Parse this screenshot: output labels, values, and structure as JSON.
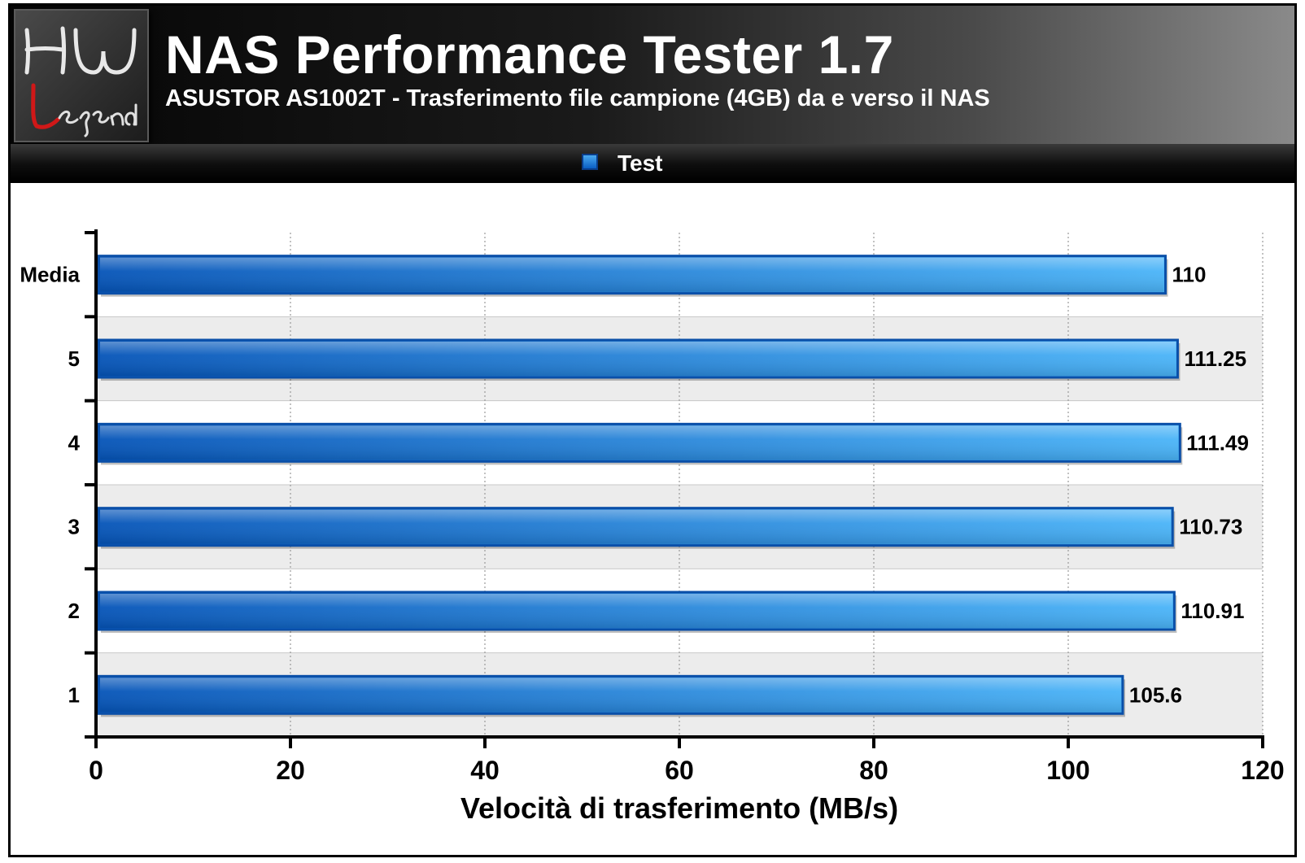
{
  "header": {
    "title": "NAS Performance Tester 1.7",
    "subtitle": "ASUSTOR AS1002T - Trasferimento file campione (4GB) da e verso il NAS",
    "logo_text_top": "HW",
    "logo_text_bottom": "Legend"
  },
  "legend": {
    "label": "Test",
    "color": "#1a7fe0"
  },
  "chart_data": {
    "type": "bar",
    "orientation": "horizontal",
    "title": "NAS Performance Tester 1.7",
    "subtitle": "ASUSTOR AS1002T - Trasferimento file campione (4GB) da e verso il NAS",
    "categories": [
      "Media",
      "5",
      "4",
      "3",
      "2",
      "1"
    ],
    "series": [
      {
        "name": "Test",
        "values": [
          110,
          111.25,
          111.49,
          110.73,
          110.91,
          105.6
        ]
      }
    ],
    "data_labels": [
      "110",
      "111.25",
      "111.49",
      "110.73",
      "110.91",
      "105.6"
    ],
    "xlabel": "Velocità di trasferimento (MB/s)",
    "ylabel": "",
    "xlim": [
      0,
      120
    ],
    "xticks": [
      0,
      20,
      40,
      60,
      80,
      100,
      120
    ],
    "grid": true,
    "legend_position": "top-center",
    "colors": {
      "bar_dark": "#0554b8",
      "bar_light": "#4ab4f8",
      "bar_border": "#0a4fa8",
      "band_alt": "#ececec"
    }
  }
}
